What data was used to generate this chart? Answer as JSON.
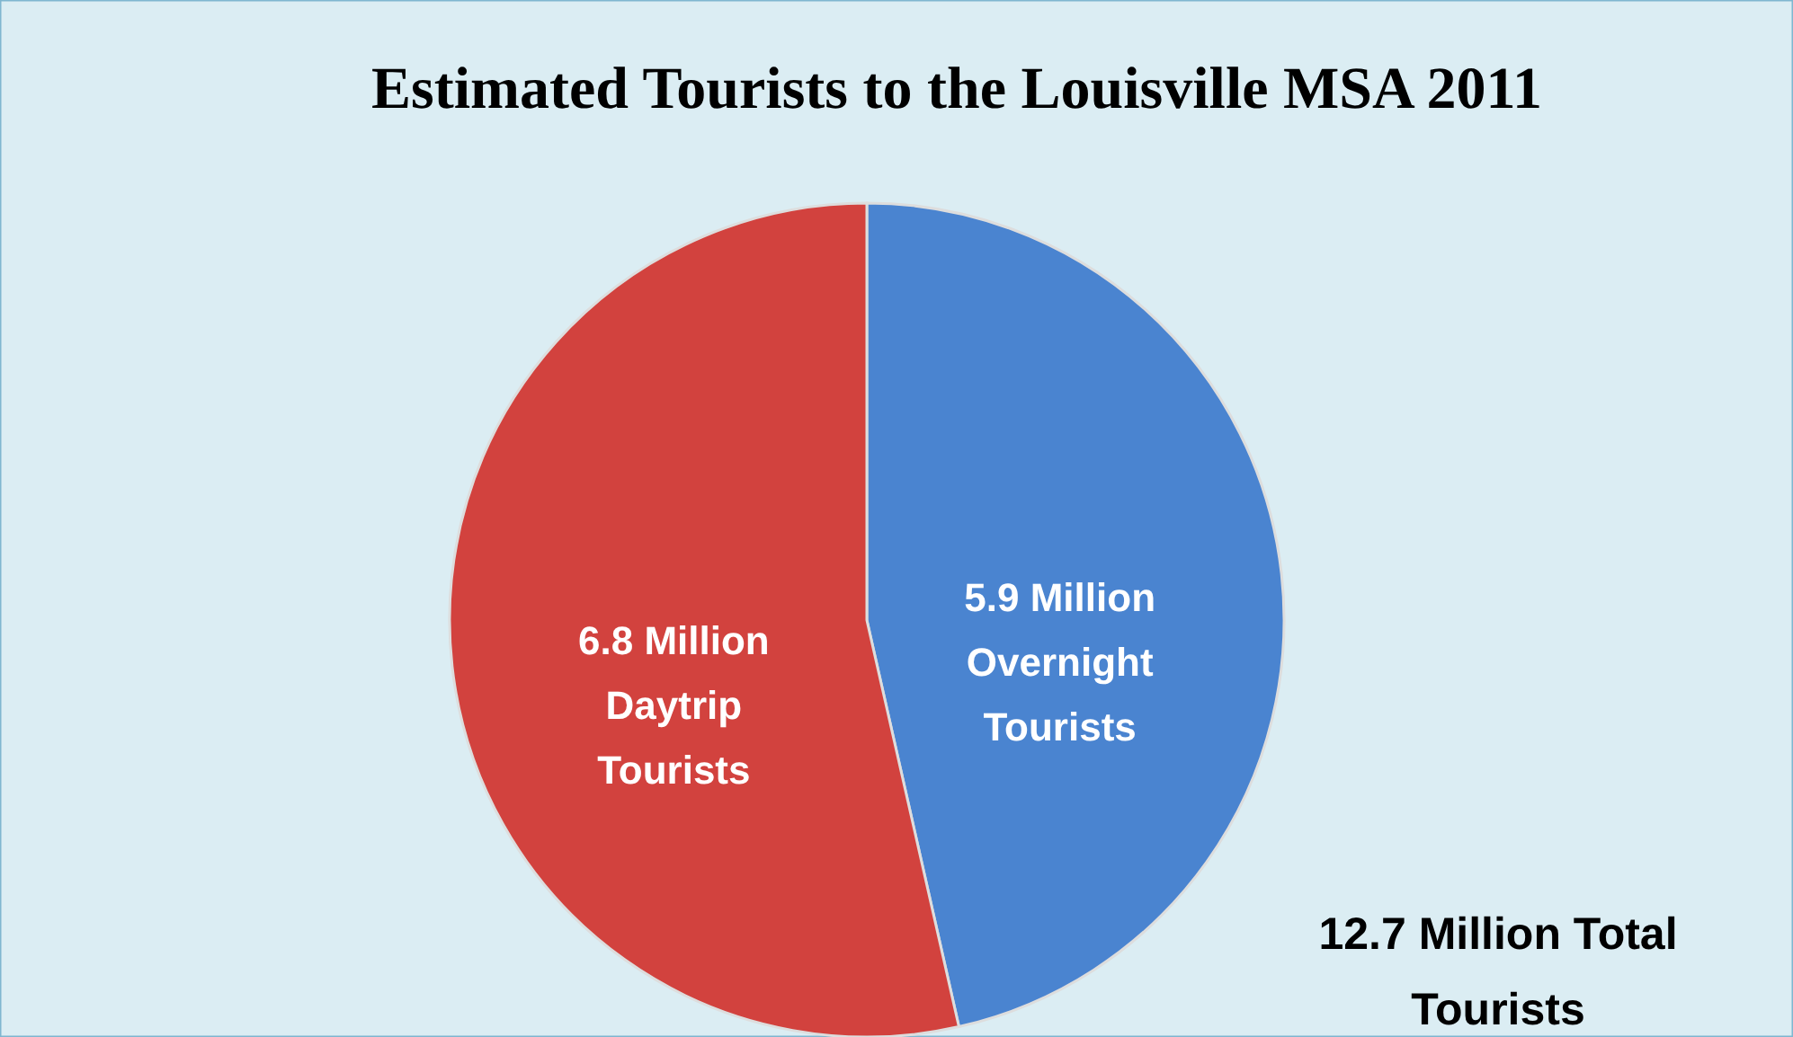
{
  "chart_data": {
    "type": "pie",
    "title": "Estimated Tourists to the Louisville MSA 2011",
    "categories": [
      "Overnight Tourists",
      "Daytrip Tourists"
    ],
    "values": [
      5.9,
      6.8
    ],
    "value_labels": [
      "5.9 Million",
      "6.8 Million"
    ],
    "colors": [
      "#4a84d0",
      "#d2423e"
    ],
    "annotations": [
      "12.7 Million Total Tourists"
    ]
  }
}
